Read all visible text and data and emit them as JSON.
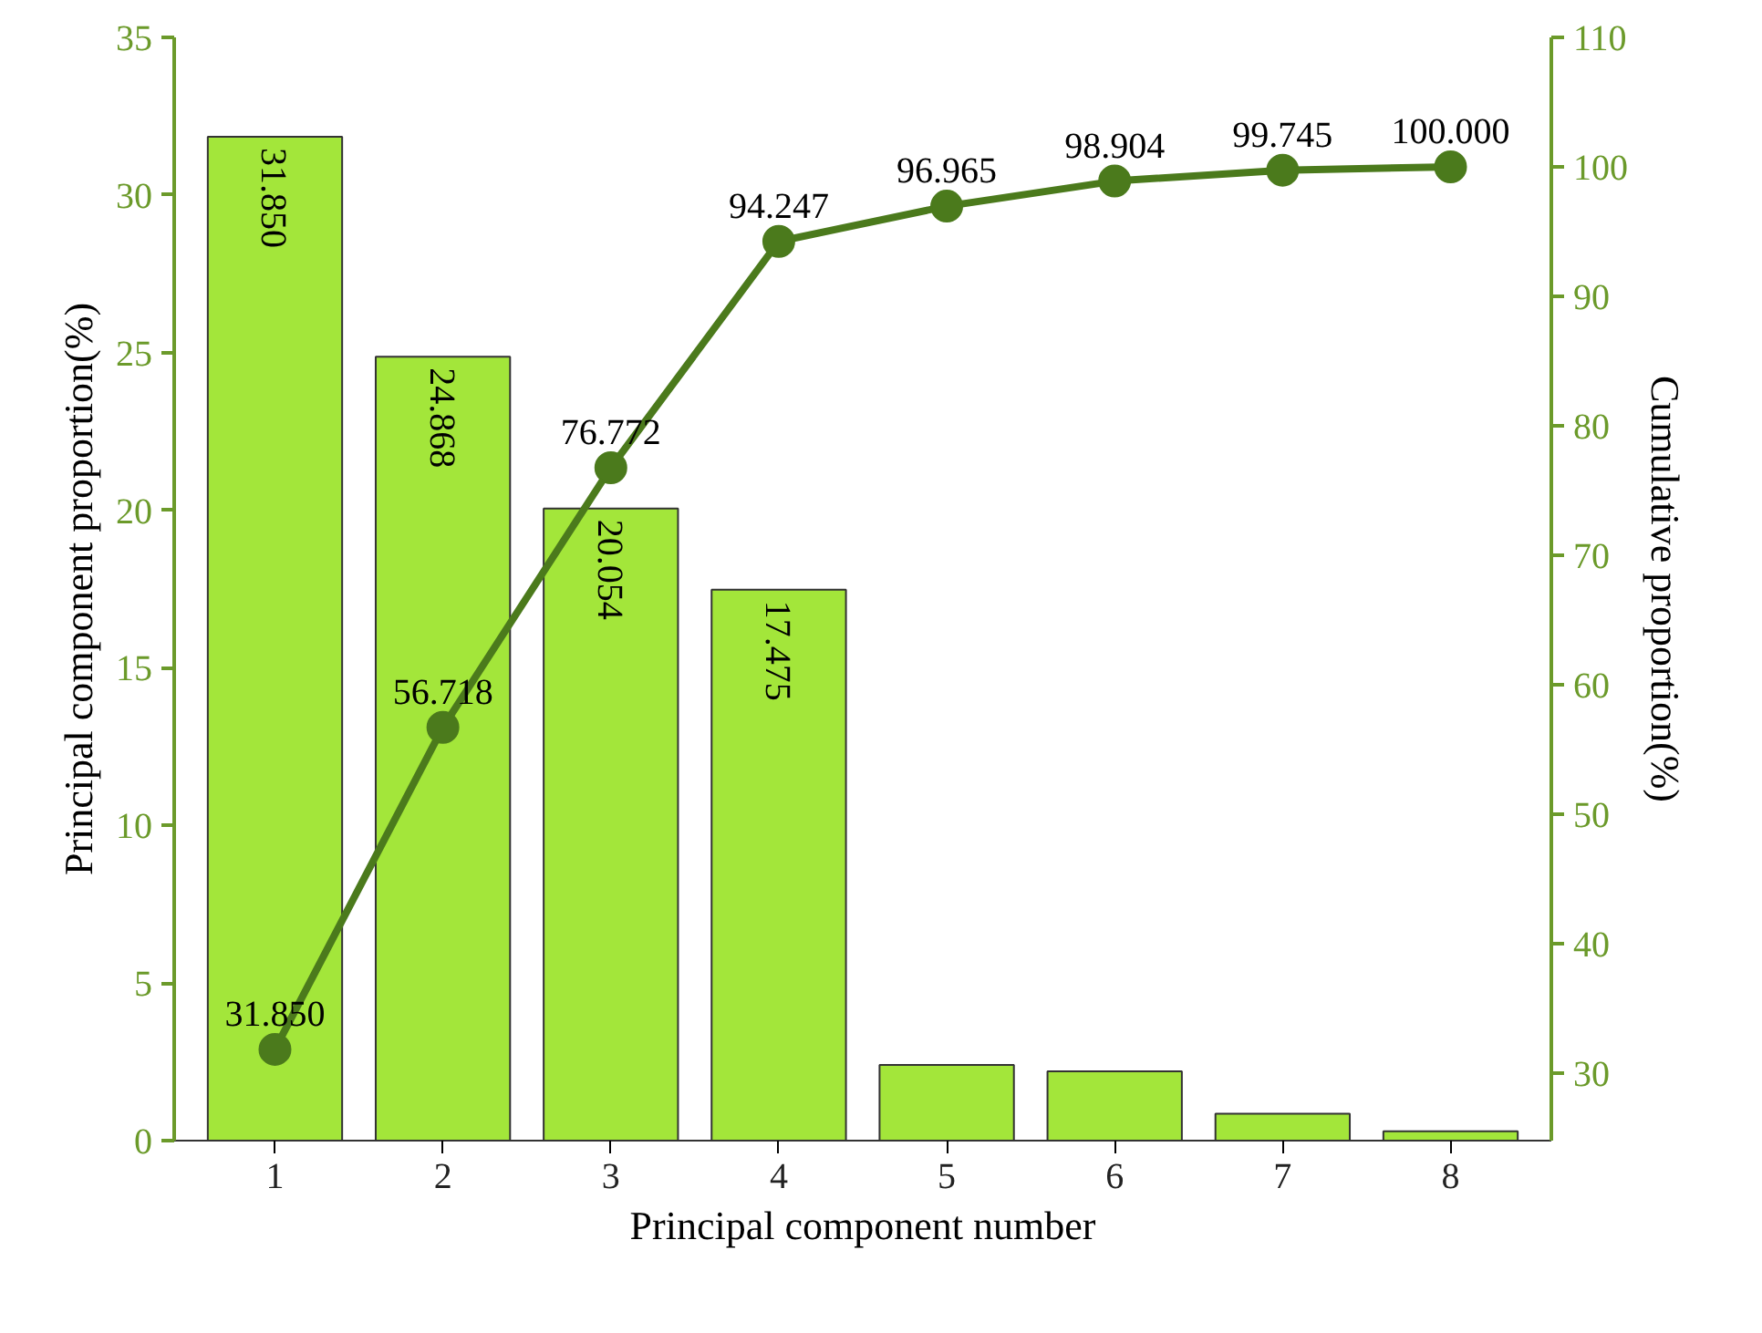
{
  "chart_data": {
    "type": "bar",
    "xlabel": "Principal component number",
    "ylabel": "Principal component proportion(%)",
    "y2label": "Cumulative proportion(%)",
    "categories": [
      "1",
      "2",
      "3",
      "4",
      "5",
      "6",
      "7",
      "8"
    ],
    "ylim": [
      0,
      35
    ],
    "yticks": [
      0,
      5,
      10,
      15,
      20,
      25,
      30,
      35
    ],
    "y2lim": [
      24.8,
      110
    ],
    "y2ticks": [
      30,
      40,
      50,
      60,
      70,
      80,
      90,
      100,
      110
    ],
    "grid": false,
    "marker": "circle",
    "line_style": "solid",
    "series": [
      {
        "color": "#a3e63a",
        "values": [
          31.85,
          24.868,
          20.054,
          17.475,
          2.4,
          2.2,
          0.85,
          0.3
        ],
        "value_labels": [
          "31.850",
          "24.868",
          "20.054",
          "17.475",
          null,
          null,
          null,
          null
        ]
      },
      {
        "type": "line",
        "axis": "y2",
        "color": "#4b7a1c",
        "values": [
          31.85,
          56.718,
          76.772,
          94.247,
          96.965,
          98.904,
          99.745,
          100.0
        ],
        "value_labels": [
          "31.850",
          "56.718",
          "76.772",
          "94.247",
          "96.965",
          "98.904",
          "99.745",
          "100.000"
        ]
      }
    ]
  }
}
